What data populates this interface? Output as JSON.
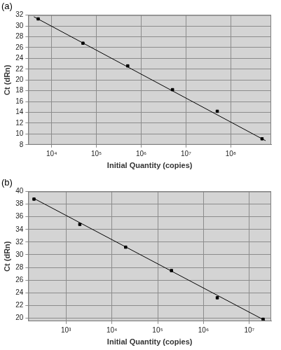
{
  "chart_data": [
    {
      "type": "scatter",
      "title": "(a)",
      "x_label": "Initial Quantity (copies)",
      "y_label": "Ct (dRn)",
      "x": [
        5000,
        50000,
        500000,
        5000000,
        50000000,
        500000000
      ],
      "values": [
        31.3,
        26.8,
        22.6,
        18.2,
        14.2,
        9.1
      ],
      "color": "#000000",
      "marker": "square",
      "fit_line": {
        "x": [
          4000,
          600000000
        ],
        "values": [
          31.7,
          8.75
        ],
        "color": "#000000",
        "line_style": "solid"
      },
      "log": "x",
      "grid": true,
      "xlim": [
        3000,
        800000000
      ],
      "xticks": [
        {
          "value": 10000,
          "label": "10⁴"
        },
        {
          "value": 100000,
          "label": "10⁵"
        },
        {
          "value": 1000000,
          "label": "10⁶"
        },
        {
          "value": 10000000,
          "label": "10⁷"
        },
        {
          "value": 100000000,
          "label": "10⁸"
        }
      ],
      "ylim": [
        8,
        32
      ],
      "yticks": [
        8,
        10,
        12,
        14,
        16,
        18,
        20,
        22,
        24,
        26,
        28,
        30,
        32
      ]
    },
    {
      "type": "scatter",
      "title": "(b)",
      "x_label": "Initial Quantity (copies)",
      "y_label": "Ct (dRn)",
      "x": [
        200,
        2000,
        20000,
        200000,
        2000000,
        20000000
      ],
      "values": [
        38.8,
        34.8,
        31.2,
        27.5,
        23.2,
        19.8
      ],
      "color": "#000000",
      "marker": "square",
      "fit_line": {
        "x": [
          200,
          22000000
        ],
        "values": [
          38.9,
          19.6
        ],
        "color": "#000000",
        "line_style": "solid"
      },
      "log": "x",
      "grid": true,
      "xlim": [
        150,
        30000000
      ],
      "xticks": [
        {
          "value": 1000,
          "label": "10³"
        },
        {
          "value": 10000,
          "label": "10⁴"
        },
        {
          "value": 100000,
          "label": "10⁵"
        },
        {
          "value": 1000000,
          "label": "10⁶"
        },
        {
          "value": 10000000,
          "label": "10⁷"
        }
      ],
      "ylim": [
        19.5,
        40
      ],
      "yticks": [
        20,
        22,
        24,
        26,
        28,
        30,
        32,
        34,
        36,
        38,
        40
      ]
    }
  ]
}
